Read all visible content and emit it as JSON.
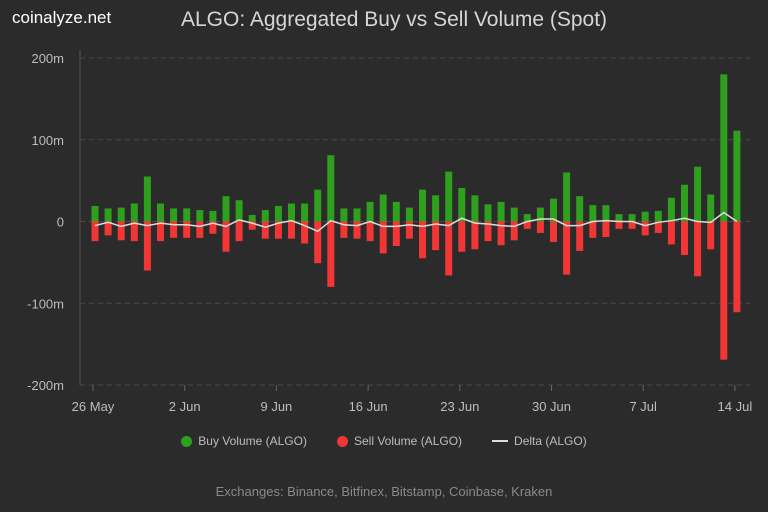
{
  "brand": "coinalyze.net",
  "chart_data": {
    "type": "bar",
    "title": "ALGO: Aggregated Buy vs Sell Volume (Spot)",
    "x_start": "2024-05-26",
    "x_ticks": [
      "26 May",
      "2 Jun",
      "9 Jun",
      "16 Jun",
      "23 Jun",
      "30 Jun",
      "7 Jul",
      "14 Jul"
    ],
    "y_ticks": [
      "200m",
      "100m",
      "0",
      "-100m",
      "-200m"
    ],
    "ylim": [
      -200,
      200
    ],
    "y_unit": "m",
    "grid": true,
    "legend_position": "bottom",
    "series": [
      {
        "name": "Buy Volume (ALGO)",
        "color": "#2ea01e",
        "values": [
          19,
          16,
          17,
          22,
          55,
          22,
          16,
          16,
          14,
          13,
          31,
          26,
          8,
          14,
          19,
          22,
          22,
          39,
          81,
          16,
          16,
          24,
          33,
          24,
          17,
          39,
          32,
          61,
          41,
          32,
          21,
          24,
          17,
          9,
          17,
          28,
          60,
          31,
          20,
          20,
          9,
          9,
          12,
          13,
          29,
          45,
          67,
          33,
          180,
          111
        ]
      },
      {
        "name": "Sell Volume (ALGO)",
        "color": "#f23636",
        "values": [
          -24,
          -17,
          -23,
          -24,
          -60,
          -24,
          -20,
          -20,
          -20,
          -15,
          -37,
          -24,
          -10,
          -21,
          -21,
          -21,
          -27,
          -51,
          -80,
          -20,
          -21,
          -24,
          -39,
          -30,
          -21,
          -45,
          -35,
          -66,
          -37,
          -34,
          -24,
          -29,
          -23,
          -9,
          -14,
          -25,
          -65,
          -36,
          -20,
          -19,
          -9,
          -9,
          -17,
          -14,
          -28,
          -41,
          -67,
          -34,
          -169,
          -111
        ]
      },
      {
        "name": "Delta (ALGO)",
        "color": "#dddddd",
        "type": "line"
      }
    ],
    "footer": "Exchanges: Binance, Bitfinex, Bitstamp, Coinbase, Kraken"
  }
}
